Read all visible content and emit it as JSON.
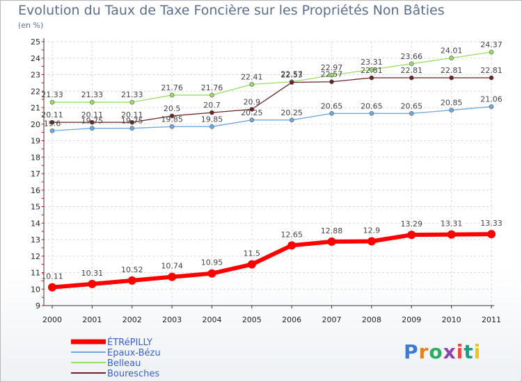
{
  "title": "Evolution du Taux de Taxe Foncière sur les Propriétés Non Bâties",
  "subtitle": "(en %)",
  "brand": "Proxiti",
  "chart_data": {
    "type": "line",
    "title": "Evolution du Taux de Taxe Foncière sur les Propriétés Non Bâties",
    "ylabel": "(en %)",
    "x": [
      "2000",
      "2001",
      "2002",
      "2003",
      "2004",
      "2005",
      "2006",
      "2007",
      "2008",
      "2009",
      "2010",
      "2011"
    ],
    "ylim": [
      9,
      25
    ],
    "yticks": [
      9,
      10,
      11,
      12,
      13,
      14,
      15,
      16,
      17,
      18,
      19,
      20,
      21,
      22,
      23,
      24,
      25
    ],
    "grid": true,
    "legend": "bottom-left",
    "series": [
      {
        "name": "ÉTRéPILLY",
        "color": "#ff0000",
        "width": 6,
        "values": [
          10.11,
          10.31,
          10.52,
          10.74,
          10.95,
          11.5,
          12.65,
          12.88,
          12.9,
          13.29,
          13.31,
          13.33
        ],
        "labels": [
          "10.11",
          "10.31",
          "10.52",
          "10.74",
          "10.95",
          "11.5",
          "12.65",
          "12.88",
          "12.9",
          "13.29",
          "13.31",
          "13.33"
        ]
      },
      {
        "name": "Epaux-Bézu",
        "color": "#6fa8dc",
        "width": 1.3,
        "values": [
          19.6,
          19.75,
          19.75,
          19.85,
          19.85,
          20.25,
          20.25,
          20.65,
          20.65,
          20.65,
          20.85,
          21.06
        ],
        "labels": [
          "19.6",
          "19.75",
          "19.75",
          "19.85",
          "19.85",
          "20.25",
          "20.25",
          "20.65",
          "20.65",
          "20.65",
          "20.85",
          "21.06"
        ]
      },
      {
        "name": "Belleau",
        "color": "#99dd66",
        "width": 1.3,
        "values": [
          21.33,
          21.33,
          21.33,
          21.76,
          21.76,
          22.41,
          22.57,
          22.97,
          23.31,
          23.66,
          24.01,
          24.37
        ],
        "labels": [
          "21.33",
          "21.33",
          "21.33",
          "21.76",
          "21.76",
          "22.41",
          "22.57",
          "22.97",
          "23.31",
          "23.66",
          "24.01",
          "24.37"
        ]
      },
      {
        "name": "Bouresches",
        "color": "#6b2226",
        "width": 1.3,
        "values": [
          20.11,
          20.11,
          20.11,
          20.5,
          20.7,
          20.9,
          22.53,
          22.57,
          22.81,
          22.81,
          22.81,
          22.81
        ],
        "labels": [
          "20.11",
          "20.11",
          "20.11",
          "20.5",
          "20.7",
          "20.9",
          "22.53",
          "22.57",
          "22.81",
          "22.81",
          "22.81",
          "22.81"
        ]
      }
    ]
  }
}
